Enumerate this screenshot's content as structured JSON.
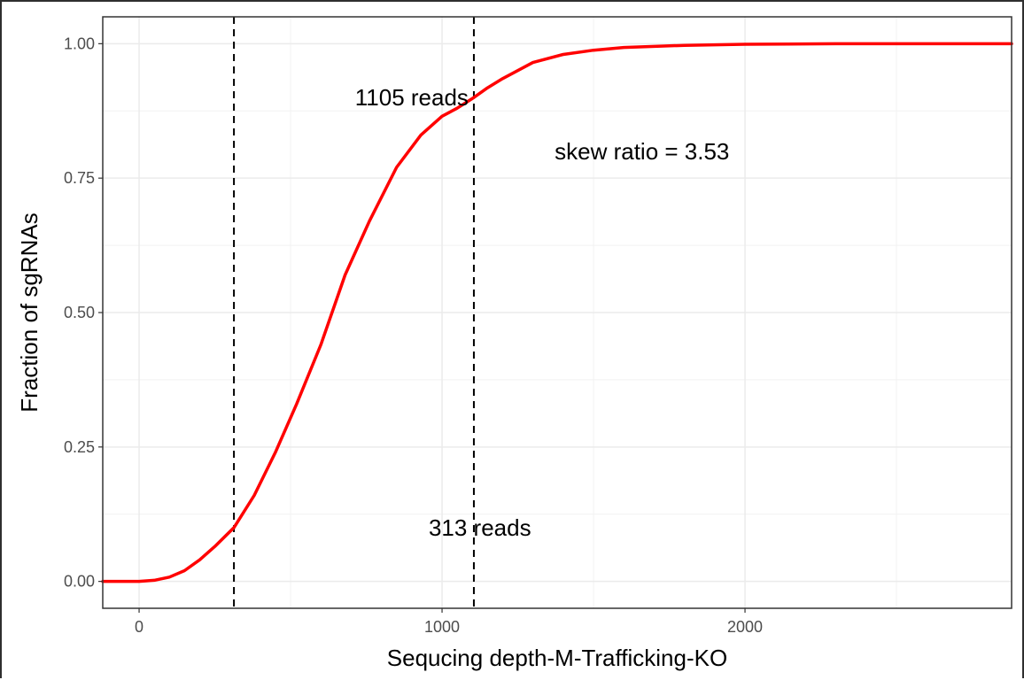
{
  "chart_data": {
    "type": "line",
    "xlabel": "Sequcing depth-M-Trafficking-KO",
    "ylabel": "Fraction of sgRNAs",
    "xlim": [
      -120,
      2880
    ],
    "ylim": [
      -0.05,
      1.05
    ],
    "x_ticks": [
      0,
      1000,
      2000
    ],
    "x_tick_labels": [
      "0",
      "1000",
      "2000"
    ],
    "y_ticks": [
      0,
      0.25,
      0.5,
      0.75,
      1
    ],
    "y_tick_labels": [
      "0.00",
      "0.25",
      "0.50",
      "0.75",
      "1.00"
    ],
    "grid": true,
    "series": [
      {
        "color": "#ff0000",
        "x": [
          -120,
          0,
          50,
          100,
          150,
          200,
          250,
          313,
          380,
          450,
          520,
          600,
          680,
          760,
          850,
          930,
          1000,
          1050,
          1105,
          1150,
          1200,
          1300,
          1400,
          1500,
          1600,
          1800,
          2000,
          2300,
          2600,
          2880
        ],
        "y": [
          0,
          0,
          0.002,
          0.008,
          0.02,
          0.04,
          0.065,
          0.1,
          0.16,
          0.24,
          0.33,
          0.44,
          0.57,
          0.67,
          0.77,
          0.83,
          0.865,
          0.88,
          0.9,
          0.918,
          0.935,
          0.965,
          0.98,
          0.988,
          0.993,
          0.997,
          0.999,
          1,
          1,
          1
        ]
      }
    ],
    "vlines": [
      313,
      1105
    ],
    "vline_color": "#000000",
    "annotations": [
      {
        "text": "1105 reads",
        "x": 900,
        "y": 0.9
      },
      {
        "text": "313 reads",
        "x": 1125,
        "y": 0.1
      },
      {
        "text": "skew ratio = 3.53",
        "x": 1660,
        "y": 0.8
      }
    ]
  }
}
